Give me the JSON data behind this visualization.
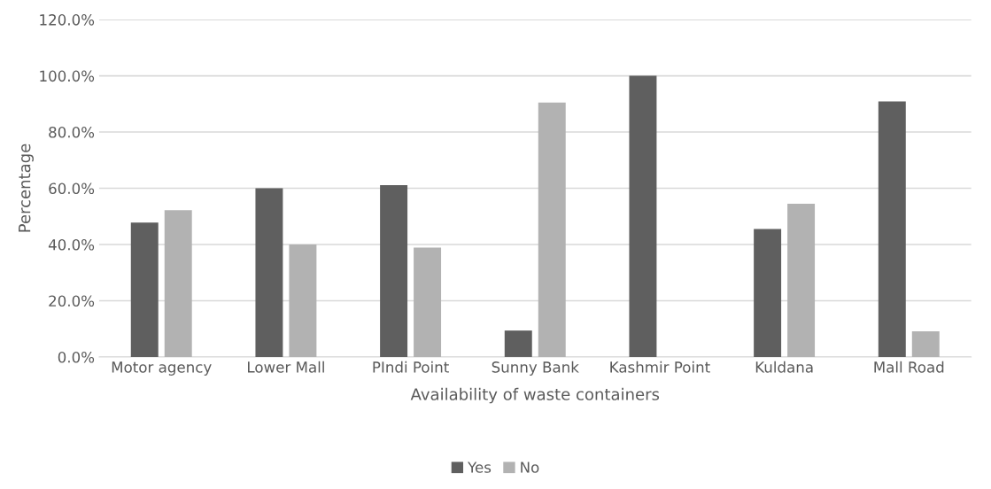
{
  "chart_data": {
    "type": "bar",
    "xlabel": "Availability of waste containers",
    "ylabel": "Percentage",
    "categories": [
      "Motor agency",
      "Lower Mall",
      "PIndi Point",
      "Sunny Bank",
      "Kashmir Point",
      "Kuldana",
      "Mall Road"
    ],
    "series": [
      {
        "name": "Yes",
        "color": "#5f5f5f",
        "values": [
          47.8,
          60.0,
          61.1,
          9.4,
          100.0,
          45.5,
          90.9
        ]
      },
      {
        "name": "No",
        "color": "#b2b2b2",
        "values": [
          52.2,
          40.0,
          38.9,
          90.5,
          0.0,
          54.5,
          9.1
        ]
      }
    ],
    "ylim": [
      0,
      120
    ],
    "yticks": [
      {
        "value": 0,
        "label": "0.0%"
      },
      {
        "value": 20,
        "label": "20.0%"
      },
      {
        "value": 40,
        "label": "40.0%"
      },
      {
        "value": 60,
        "label": "60.0%"
      },
      {
        "value": 80,
        "label": "80.0%"
      },
      {
        "value": 100,
        "label": "100.0%"
      },
      {
        "value": 120,
        "label": "120.0%"
      }
    ],
    "grid": "y",
    "legend": "bottom"
  }
}
